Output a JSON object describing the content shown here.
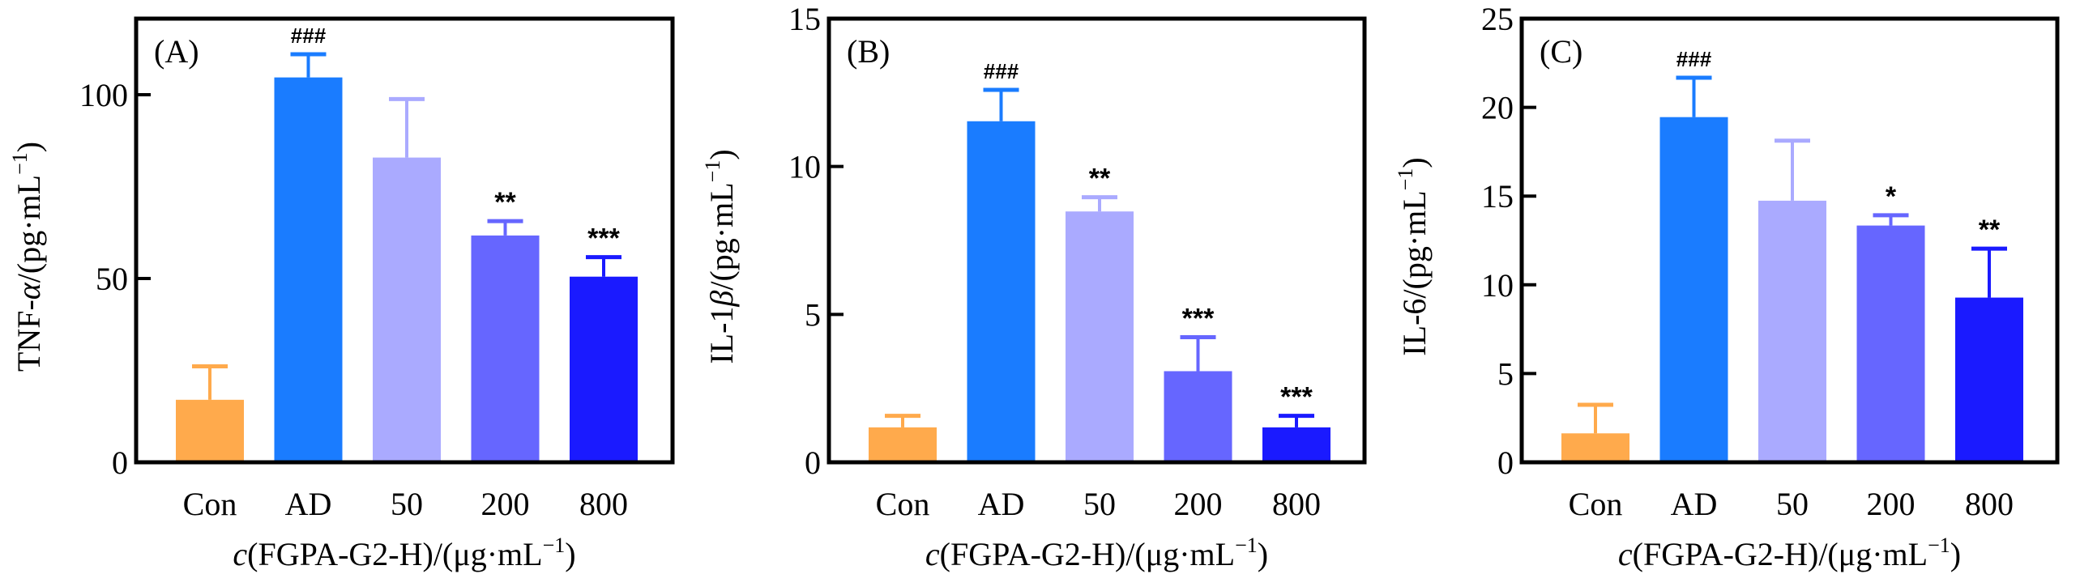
{
  "chart_data": [
    {
      "type": "bar",
      "panel_label": "(A)",
      "title": "",
      "xlabel_italic": "c",
      "xlabel_rest": "(FGPA-G2-H)/(μg·mL",
      "xlabel_sup": "−1",
      "xlabel_close": ")",
      "ylabel_pre": "TNF-",
      "ylabel_greek": "α",
      "ylabel_rest": "/(pg·mL",
      "ylabel_sup": "−1",
      "ylabel_close": ")",
      "categories": [
        "Con",
        "AD",
        "50",
        "200",
        "800"
      ],
      "values": [
        17,
        104.7,
        82.9,
        61.7,
        50.5
      ],
      "error_upper": [
        26.1,
        111,
        98.8,
        65.6,
        55.8
      ],
      "annotations": [
        "",
        "###",
        "",
        "**",
        "***"
      ],
      "yticks": [
        0,
        50,
        100
      ],
      "ylim": [
        0,
        120.7
      ],
      "grid": false
    },
    {
      "type": "bar",
      "panel_label": "(B)",
      "title": "",
      "xlabel_italic": "c",
      "xlabel_rest": "(FGPA-G2-H)/(μg·mL",
      "xlabel_sup": "−1",
      "xlabel_close": ")",
      "ylabel_pre": "IL-1",
      "ylabel_greek": "β",
      "ylabel_rest": "/(pg·mL",
      "ylabel_sup": "−1",
      "ylabel_close": ")",
      "categories": [
        "Con",
        "AD",
        "50",
        "200",
        "800"
      ],
      "values": [
        1.18,
        11.53,
        8.48,
        3.08,
        1.18
      ],
      "error_upper": [
        1.57,
        12.59,
        8.96,
        4.23,
        1.57
      ],
      "annotations": [
        "",
        "###",
        "**",
        "***",
        "***"
      ],
      "yticks": [
        0,
        5,
        10,
        15
      ],
      "ylim": [
        0,
        15
      ],
      "grid": false
    },
    {
      "type": "bar",
      "panel_label": "(C)",
      "title": "",
      "xlabel_italic": "c",
      "xlabel_rest": "(FGPA-G2-H)/(μg·mL",
      "xlabel_sup": "−1",
      "xlabel_close": ")",
      "ylabel_pre": "IL-6",
      "ylabel_greek": "",
      "ylabel_rest": "/(pg·mL",
      "ylabel_sup": "−1",
      "ylabel_close": ")",
      "categories": [
        "Con",
        "AD",
        "50",
        "200",
        "800"
      ],
      "values": [
        1.63,
        19.45,
        14.74,
        13.34,
        9.28
      ],
      "error_upper": [
        3.24,
        21.67,
        18.12,
        13.92,
        12.04
      ],
      "annotations": [
        "",
        "###",
        "",
        "*",
        "**"
      ],
      "yticks": [
        0,
        5,
        10,
        15,
        20,
        25
      ],
      "ylim": [
        0,
        25
      ],
      "grid": false
    }
  ],
  "bar_colors": [
    "#FFAA4C",
    "#1A7CFF",
    "#AAAAFF",
    "#6666FF",
    "#1A1AFF"
  ]
}
